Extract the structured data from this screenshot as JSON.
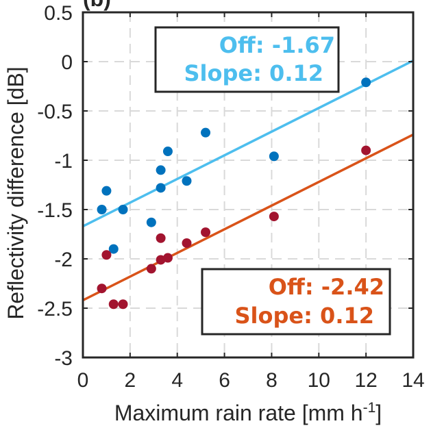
{
  "chart_data": {
    "type": "scatter",
    "panel_label_partial": "(b)",
    "xlabel": "Maximum rain rate [mm h",
    "xlabel_sup": "-1",
    "xlabel_close": "]",
    "ylabel": "Reflectivity difference [dB]",
    "xlim": [
      0,
      14
    ],
    "ylim": [
      -3,
      0.5
    ],
    "xticks": [
      "0",
      "2",
      "4",
      "6",
      "8",
      "10",
      "12",
      "14"
    ],
    "yticks": [
      "0.5",
      "0",
      "-0.5",
      "-1",
      "-1.5",
      "-2",
      "-2.5",
      "-3"
    ],
    "grid": true,
    "series": [
      {
        "color": "#0072BD",
        "fit_color": "#4DBEEE",
        "points": [
          {
            "x": 0.8,
            "y": -1.5
          },
          {
            "x": 1.0,
            "y": -1.31
          },
          {
            "x": 1.3,
            "y": -1.9
          },
          {
            "x": 1.7,
            "y": -1.5
          },
          {
            "x": 2.9,
            "y": -1.63
          },
          {
            "x": 3.3,
            "y": -1.1
          },
          {
            "x": 3.3,
            "y": -1.28
          },
          {
            "x": 3.6,
            "y": -0.91
          },
          {
            "x": 4.4,
            "y": -1.21
          },
          {
            "x": 5.2,
            "y": -0.72
          },
          {
            "x": 8.1,
            "y": -0.96
          },
          {
            "x": 12.0,
            "y": -0.21
          }
        ],
        "fit": {
          "offset": -1.67,
          "slope": 0.12
        },
        "annotation": {
          "line1": "Off: -1.67",
          "line2": "Slope: 0.12"
        }
      },
      {
        "color": "#A2142F",
        "fit_color": "#D95319",
        "points": [
          {
            "x": 0.8,
            "y": -2.3
          },
          {
            "x": 1.0,
            "y": -1.96
          },
          {
            "x": 1.3,
            "y": -2.46
          },
          {
            "x": 1.7,
            "y": -2.46
          },
          {
            "x": 2.9,
            "y": -2.1
          },
          {
            "x": 3.3,
            "y": -2.01
          },
          {
            "x": 3.3,
            "y": -1.79
          },
          {
            "x": 3.6,
            "y": -1.99
          },
          {
            "x": 4.4,
            "y": -1.84
          },
          {
            "x": 5.2,
            "y": -1.73
          },
          {
            "x": 8.1,
            "y": -1.57
          },
          {
            "x": 12.0,
            "y": -0.9
          }
        ],
        "fit": {
          "offset": -2.42,
          "slope": 0.12
        },
        "annotation": {
          "line1": "Off: -2.42",
          "line2": "Slope: 0.12"
        }
      }
    ]
  }
}
